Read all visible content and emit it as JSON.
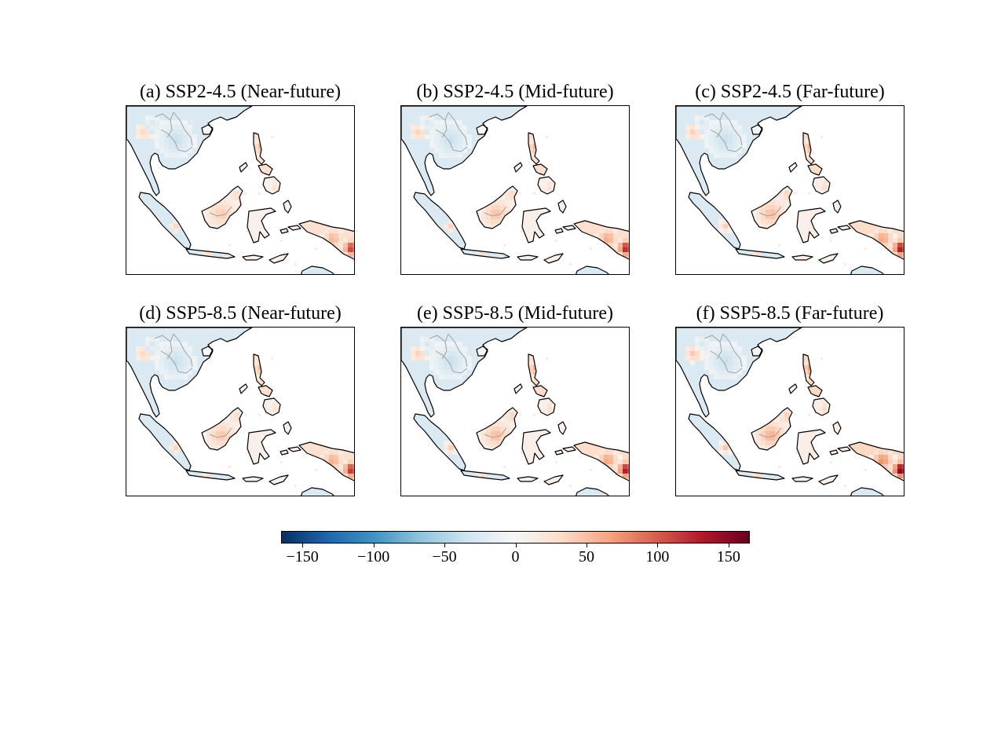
{
  "figure": {
    "panels": [
      {
        "title": "(a) SSP2-4.5 (Near-future)",
        "intensity": 0.85
      },
      {
        "title": "(b) SSP2-4.5 (Mid-future)",
        "intensity": 0.95
      },
      {
        "title": "(c) SSP2-4.5 (Far-future)",
        "intensity": 1.0
      },
      {
        "title": "(d) SSP5-8.5 (Near-future)",
        "intensity": 0.9
      },
      {
        "title": "(e) SSP5-8.5 (Mid-future)",
        "intensity": 1.0
      },
      {
        "title": "(f) SSP5-8.5 (Far-future)",
        "intensity": 1.15
      }
    ],
    "colorbar": {
      "min": -165,
      "max": 165,
      "ticks": [
        -150,
        -100,
        -50,
        0,
        50,
        100,
        150
      ],
      "tick_labels": [
        "−150",
        "−100",
        "−50",
        "0",
        "50",
        "100",
        "150"
      ],
      "colormap": "RdBu_r",
      "colors": [
        "#053061",
        "#2166ac",
        "#4393c3",
        "#92c5de",
        "#d1e5f0",
        "#f7f7f7",
        "#fddbc7",
        "#f4a582",
        "#d6604d",
        "#b2182b",
        "#67001f"
      ]
    },
    "styles": {
      "coastline_color": "#000000",
      "border_color": "#a0a0a0"
    }
  }
}
